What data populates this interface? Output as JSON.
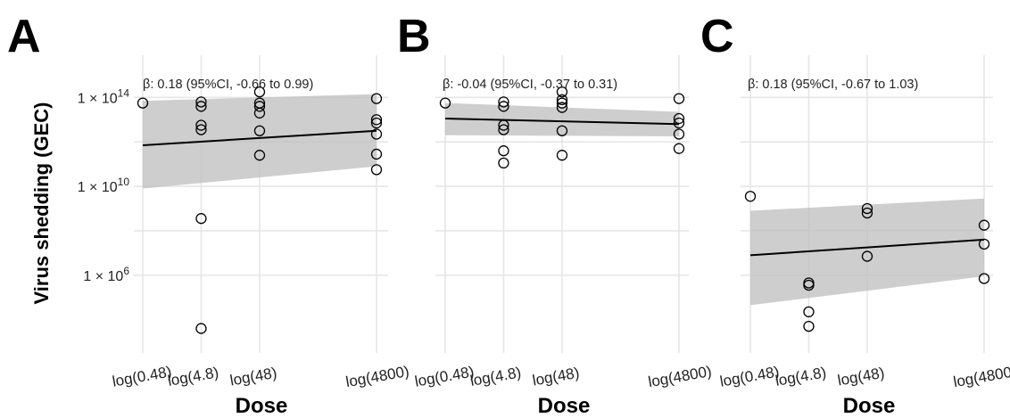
{
  "chart_data": {
    "type": "scatter",
    "ylabel": "Virus shedding (GEC)",
    "xlabel": "Dose",
    "x_categories": [
      "log(0.48)",
      "log(4.8)",
      "log(48)",
      "log(4800)"
    ],
    "x_values": [
      -0.318,
      0.681,
      1.681,
      3.681
    ],
    "y_scale": "log10",
    "yticks": [
      {
        "value": 14,
        "label": "1 × 10",
        "exp": "14"
      },
      {
        "value": 10,
        "label": "1 × 10",
        "exp": "10"
      },
      {
        "value": 6,
        "label": "1 × 10",
        "exp": "6"
      }
    ],
    "ylim": [
      2.5,
      15.9
    ],
    "grid": true,
    "panels": [
      {
        "letter": "A",
        "annotation": "β: 0.18 (95%CI, -0.66 to 0.99)",
        "points_log10": [
          {
            "x": -0.318,
            "y": 13.75
          },
          {
            "x": 0.681,
            "y": 13.8
          },
          {
            "x": 0.681,
            "y": 13.6
          },
          {
            "x": 0.681,
            "y": 12.75
          },
          {
            "x": 0.681,
            "y": 12.55
          },
          {
            "x": 0.681,
            "y": 8.55
          },
          {
            "x": 0.681,
            "y": 3.6
          },
          {
            "x": 1.681,
            "y": 14.25
          },
          {
            "x": 1.681,
            "y": 13.75
          },
          {
            "x": 1.681,
            "y": 13.6
          },
          {
            "x": 1.681,
            "y": 13.3
          },
          {
            "x": 1.681,
            "y": 12.5
          },
          {
            "x": 1.681,
            "y": 11.4
          },
          {
            "x": 3.681,
            "y": 13.95
          },
          {
            "x": 3.681,
            "y": 13.0
          },
          {
            "x": 3.681,
            "y": 12.85
          },
          {
            "x": 3.681,
            "y": 12.35
          },
          {
            "x": 3.681,
            "y": 11.45
          },
          {
            "x": 3.681,
            "y": 10.75
          }
        ],
        "fit_log10": [
          {
            "x": -0.318,
            "y": 11.85
          },
          {
            "x": 3.681,
            "y": 12.5
          }
        ],
        "ci_log10": {
          "lower": [
            9.9,
            10.9
          ],
          "upper": [
            13.85,
            14.15
          ]
        }
      },
      {
        "letter": "B",
        "annotation": "β: -0.04 (95%CI, -0.37 to 0.31)",
        "points_log10": [
          {
            "x": -0.318,
            "y": 13.75
          },
          {
            "x": 0.681,
            "y": 13.8
          },
          {
            "x": 0.681,
            "y": 13.6
          },
          {
            "x": 0.681,
            "y": 12.75
          },
          {
            "x": 0.681,
            "y": 12.55
          },
          {
            "x": 0.681,
            "y": 11.6
          },
          {
            "x": 0.681,
            "y": 11.05
          },
          {
            "x": 1.681,
            "y": 14.25
          },
          {
            "x": 1.681,
            "y": 13.9
          },
          {
            "x": 1.681,
            "y": 13.75
          },
          {
            "x": 1.681,
            "y": 13.55
          },
          {
            "x": 1.681,
            "y": 12.5
          },
          {
            "x": 1.681,
            "y": 11.4
          },
          {
            "x": 3.681,
            "y": 13.95
          },
          {
            "x": 3.681,
            "y": 13.05
          },
          {
            "x": 3.681,
            "y": 12.85
          },
          {
            "x": 3.681,
            "y": 12.35
          },
          {
            "x": 3.681,
            "y": 11.7
          }
        ],
        "fit_log10": [
          {
            "x": -0.318,
            "y": 13.05
          },
          {
            "x": 3.681,
            "y": 12.8
          }
        ],
        "ci_log10": {
          "lower": [
            12.3,
            12.25
          ],
          "upper": [
            13.75,
            13.35
          ]
        }
      },
      {
        "letter": "C",
        "annotation": "β: 0.18 (95%CI, -0.67 to 1.03)",
        "points_log10": [
          {
            "x": -0.318,
            "y": 9.55
          },
          {
            "x": 0.681,
            "y": 5.65
          },
          {
            "x": 0.681,
            "y": 5.55
          },
          {
            "x": 0.681,
            "y": 4.35
          },
          {
            "x": 0.681,
            "y": 3.7
          },
          {
            "x": 1.681,
            "y": 9.0
          },
          {
            "x": 1.681,
            "y": 8.8
          },
          {
            "x": 1.681,
            "y": 6.85
          },
          {
            "x": 3.681,
            "y": 8.25
          },
          {
            "x": 3.681,
            "y": 7.4
          },
          {
            "x": 3.681,
            "y": 5.85
          }
        ],
        "fit_log10": [
          {
            "x": -0.318,
            "y": 6.9
          },
          {
            "x": 3.681,
            "y": 7.6
          }
        ],
        "ci_log10": {
          "lower": [
            4.65,
            5.95
          ],
          "upper": [
            8.9,
            9.45
          ]
        }
      }
    ]
  }
}
